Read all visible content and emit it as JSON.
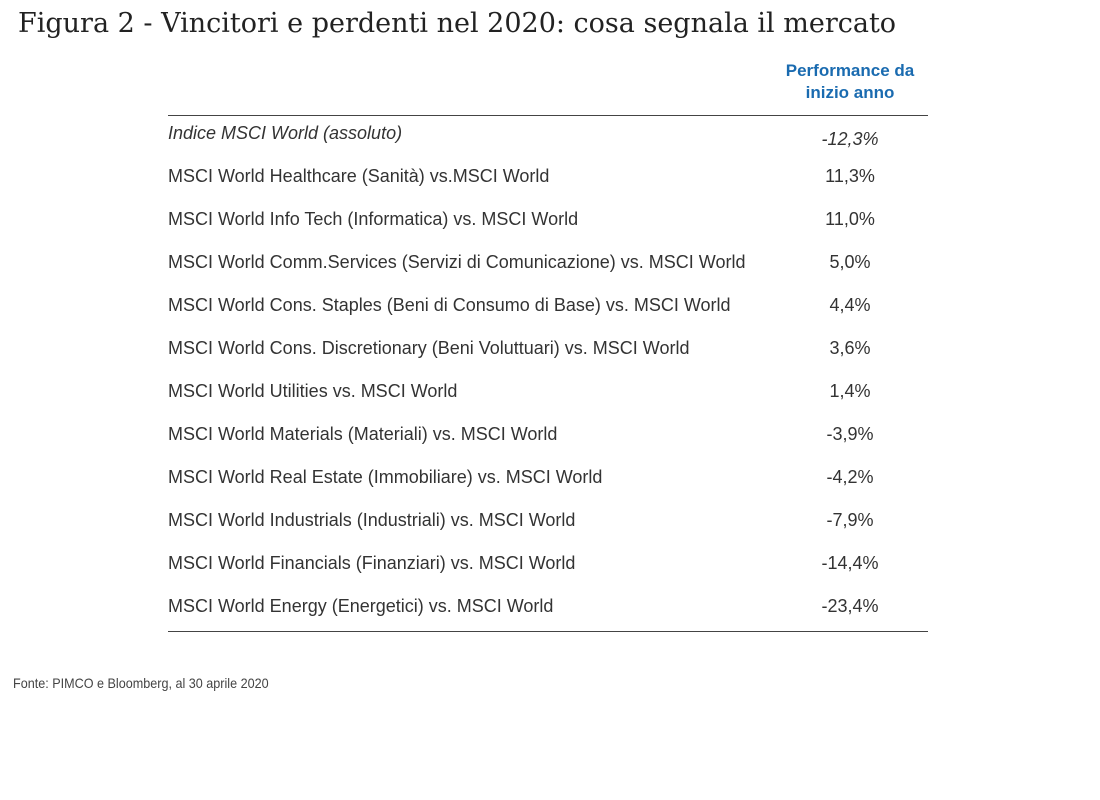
{
  "header": {
    "title": "Figura 2 - Vincitori e perdenti nel 2020: cosa segnala il mercato"
  },
  "table": {
    "columns": [
      "Performance da inizio anno"
    ],
    "rows": [
      [
        "Indice MSCI World (assoluto)",
        "-12,3%"
      ],
      [
        "MSCI World Healthcare (Sanità) vs.MSCI World",
        "11,3%"
      ],
      [
        "MSCI World Info Tech (Informatica) vs. MSCI World",
        "11,0%"
      ],
      [
        "MSCI World Comm.Services (Servizi di Comunicazione) vs. MSCI World",
        "5,0%"
      ],
      [
        "MSCI World Cons. Staples (Beni di Consumo di Base) vs. MSCI World",
        "4,4%"
      ],
      [
        "MSCI World Cons. Discretionary (Beni Voluttuari) vs. MSCI World",
        "3,6%"
      ],
      [
        "MSCI World Utilities vs. MSCI World",
        "1,4%"
      ],
      [
        "MSCI World Materials (Materiali) vs. MSCI World",
        "-3,9%"
      ],
      [
        "MSCI World Real Estate (Immobiliare) vs. MSCI World",
        "-4,2%"
      ],
      [
        "MSCI World Industrials (Industriali) vs. MSCI World",
        "-7,9%"
      ],
      [
        "MSCI World Financials (Finanziari) vs. MSCI World",
        "-14,4%"
      ],
      [
        "MSCI World Energy (Energetici) vs. MSCI World",
        "-23,4%"
      ]
    ]
  },
  "footer": {
    "source": "Fonte: PIMCO e Bloomberg, al 30 aprile 2020"
  }
}
